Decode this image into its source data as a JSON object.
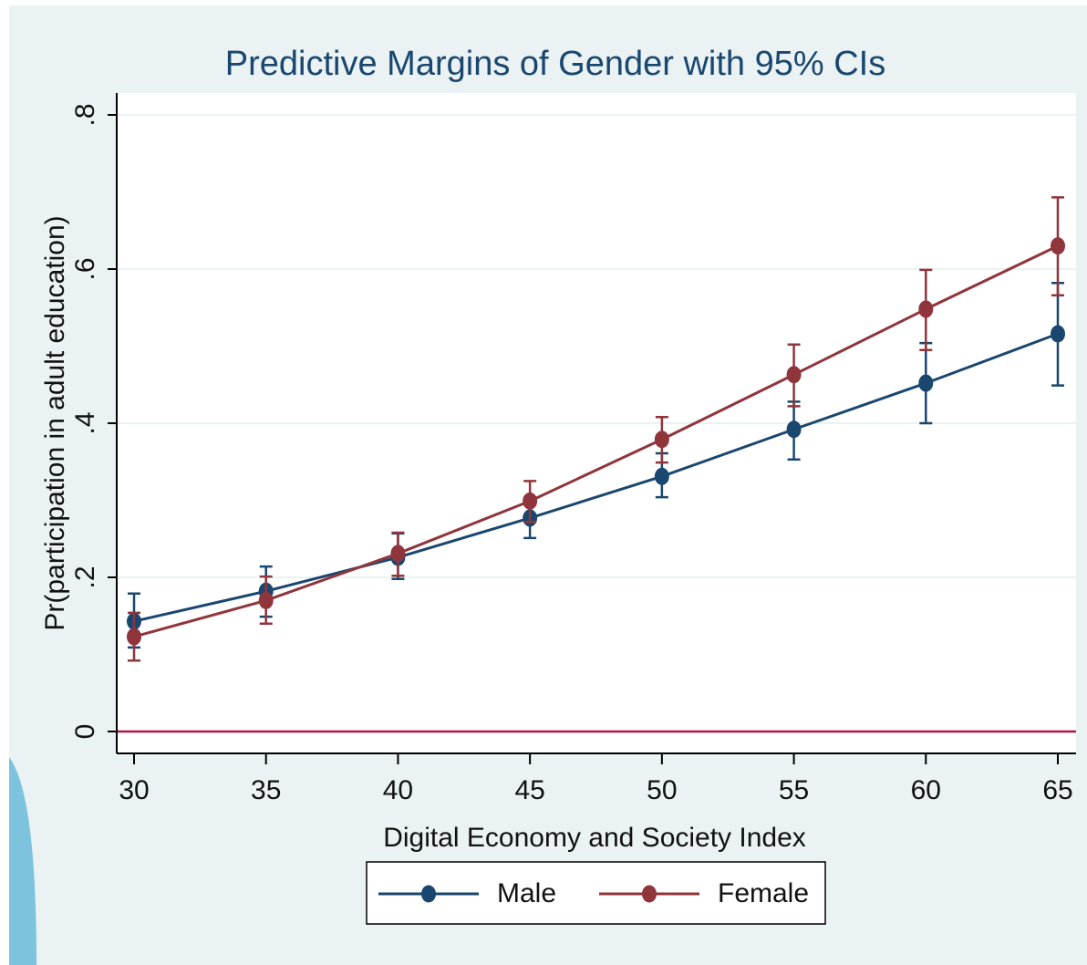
{
  "chart_data": {
    "type": "line",
    "title": "Predictive Margins of Gender with 95% CIs",
    "x_label": "Digital Economy and Society Index",
    "y_label": "Pr(participation in adult education)",
    "x": [
      30,
      35,
      40,
      45,
      50,
      55,
      60,
      65
    ],
    "series": [
      {
        "name": "Male",
        "color": "#1a476f",
        "values": [
          0.143,
          0.182,
          0.226,
          0.277,
          0.331,
          0.392,
          0.452,
          0.516
        ],
        "lower": [
          0.109,
          0.149,
          0.198,
          0.251,
          0.304,
          0.353,
          0.4,
          0.449
        ],
        "upper": [
          0.179,
          0.214,
          0.257,
          0.304,
          0.361,
          0.428,
          0.504,
          0.582
        ]
      },
      {
        "name": "Female",
        "color": "#90353b",
        "values": [
          0.123,
          0.17,
          0.231,
          0.299,
          0.379,
          0.463,
          0.548,
          0.63
        ],
        "lower": [
          0.092,
          0.14,
          0.202,
          0.272,
          0.349,
          0.422,
          0.495,
          0.566
        ],
        "upper": [
          0.154,
          0.201,
          0.258,
          0.325,
          0.408,
          0.502,
          0.599,
          0.693
        ]
      }
    ],
    "xlim": [
      30,
      65
    ],
    "xticks": [
      30,
      35,
      40,
      45,
      50,
      55,
      60,
      65
    ],
    "ylim": [
      0,
      0.8
    ],
    "yticks": [
      0,
      {
        "value": 0.2,
        "label": ".2"
      },
      {
        "value": 0.4,
        "label": ".4"
      },
      {
        "value": 0.6,
        "label": ".6"
      },
      {
        "value": 0.8,
        "label": ".8"
      }
    ],
    "grid": true,
    "reference_line": {
      "value": 0,
      "color": "#b0154a"
    },
    "legend": "bottom"
  }
}
